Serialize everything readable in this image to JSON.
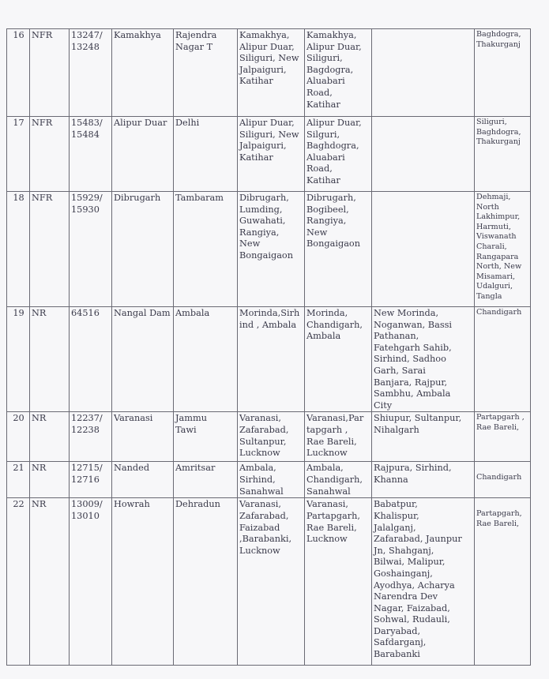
{
  "rows": [
    {
      "sn": "16",
      "zone": "NFR",
      "train": "13247/\n13248",
      "from": "Kamakhya",
      "to": "Rajendra\nNagar T",
      "old_route": "Kamakhya,\nAlipur Duar,\nSiliguri, New\nJalpaiguri,\nKatihar",
      "new_route": "Kamakhya,\nAlipur Duar,\nSiliguri,\nBagdogra,\nAluabari\nRoad,\nKatihar",
      "added": "",
      "dropped": "Baghdogra,\nThakurganj"
    },
    {
      "sn": "17",
      "zone": "NFR",
      "train": "15483/\n15484",
      "from": "Alipur Duar",
      "to": "Delhi",
      "old_route": "Alipur Duar,\nSiliguri,  New\nJalpaiguri,\nKatihar",
      "new_route": "Alipur Duar,\nSilguri,\nBaghdogra,\nAluabari\nRoad,\nKatihar",
      "added": "",
      "dropped": "Siliguri,\nBaghdogra,\nThakurganj"
    },
    {
      "sn": "18",
      "zone": "NFR",
      "train": "15929/\n15930",
      "from": "Dibrugarh",
      "to": "Tambaram",
      "old_route": "Dibrugarh,\nLumding,\nGuwahati,\nRangiya,\nNew\nBongaigaon",
      "new_route": "Dibrugarh,\nBogibeel,\nRangiya,\nNew\nBongaigaon",
      "added": "",
      "dropped": " Dehmaji,\nNorth\nLakhimpur,\nHarmuti,\nViswanath\nCharali,\nRangapara\nNorth, New\nMisamari,\nUdalguri,\nTangla"
    },
    {
      "sn": "19",
      "zone": "NR",
      "train": "64516",
      "from": "Nangal Dam",
      "to": "Ambala",
      "old_route": "Morinda,Sirh\nind , Ambala",
      "new_route": "Morinda,\nChandigarh,\nAmbala",
      "added": "New Morinda,\nNoganwan, Bassi\nPathanan,\nFatehgarh Sahib,\nSirhind, Sadhoo\nGarh, Sarai\nBanjara, Rajpur,\nSambhu, Ambala\nCity",
      "dropped": "Chandigarh"
    },
    {
      "sn": "20",
      "zone": "NR",
      "train": "12237/\n12238",
      "from": "Varanasi",
      "to": "Jammu\nTawi",
      "old_route": "Varanasi,\nZafarabad,\nSultanpur,\nLucknow",
      "new_route": "Varanasi,Par\ntapgarh ,\nRae Bareli,\nLucknow",
      "added": "Shiupur, Sultanpur,\nNihalgarh",
      "dropped": "Partapgarh ,\nRae Bareli,"
    },
    {
      "sn": "21",
      "zone": "NR",
      "train": "12715/\n12716",
      "from": "Nanded",
      "to": "Amritsar",
      "old_route": "Ambala,\nSirhind,\nSanahwal",
      "new_route": "Ambala,\nChandigarh,\nSanahwal",
      "added": "Rajpura, Sirhind,\nKhanna",
      "dropped": "\nChandigarh"
    },
    {
      "sn": "22",
      "zone": "NR",
      "train": "13009/\n13010",
      "from": "Howrah",
      "to": "Dehradun",
      "old_route": "Varanasi,\nZafarabad,\nFaizabad\n,Barabanki,\nLucknow",
      "new_route": "Varanasi,\nPartapgarh,\nRae Bareli,\nLucknow",
      "added": "Babatpur,\nKhalispur,\nJalalganj,\nZafarabad, Jaunpur\nJn, Shahganj,\nBilwai, Malipur,\nGoshainganj,\nAyodhya, Acharya\nNarendra Dev\nNagar, Faizabad,\nSohwal, Rudauli,\nDaryabad,\nSafdarganj,\nBarabanki",
      "dropped": "\nPartapgarh,\nRae Bareli,"
    }
  ]
}
